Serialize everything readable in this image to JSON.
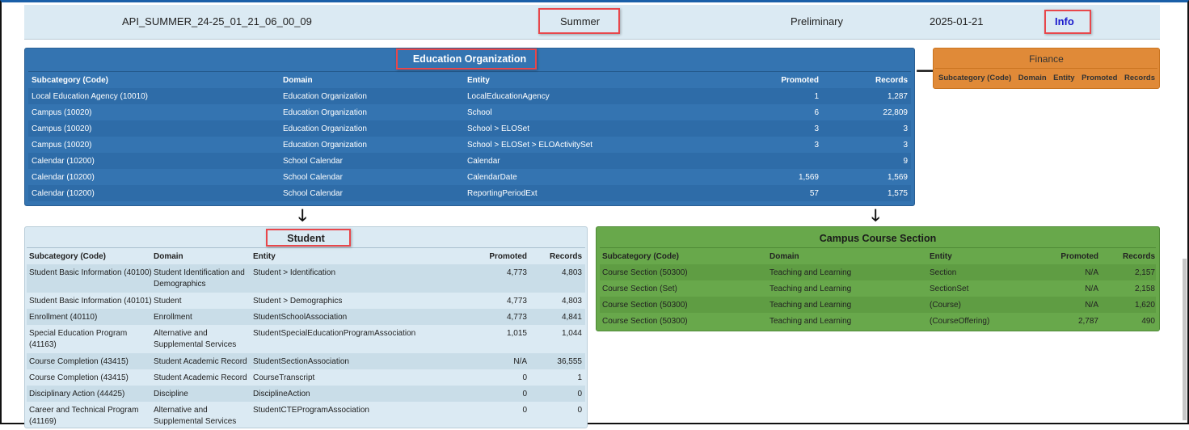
{
  "header": {
    "file": "API_SUMMER_24-25_01_21_06_00_09",
    "submission": "Summer",
    "status": "Preliminary",
    "date": "2025-01-21",
    "info": "Info"
  },
  "columns": {
    "subcategory": "Subcategory (Code)",
    "domain": "Domain",
    "entity": "Entity",
    "promoted": "Promoted",
    "records": "Records"
  },
  "education_organization": {
    "title": "Education Organization",
    "rows": [
      [
        "Local Education Agency (10010)",
        "Education Organization",
        "LocalEducationAgency",
        "1",
        "1,287"
      ],
      [
        "Campus (10020)",
        "Education Organization",
        "School",
        "6",
        "22,809"
      ],
      [
        "Campus (10020)",
        "Education Organization",
        "School > ELOSet",
        "3",
        "3"
      ],
      [
        "Campus (10020)",
        "Education Organization",
        "School > ELOSet > ELOActivitySet",
        "3",
        "3"
      ],
      [
        "Calendar (10200)",
        "School Calendar",
        "Calendar",
        "",
        "9"
      ],
      [
        "Calendar (10200)",
        "School Calendar",
        "CalendarDate",
        "1,569",
        "1,569"
      ],
      [
        "Calendar (10200)",
        "School Calendar",
        "ReportingPeriodExt",
        "57",
        "1,575"
      ]
    ]
  },
  "finance": {
    "title": "Finance",
    "rows": []
  },
  "student": {
    "title": "Student",
    "rows": [
      [
        "Student Basic Information (40100)",
        "Student Identification and Demographics",
        "Student > Identification",
        "4,773",
        "4,803"
      ],
      [
        "Student Basic Information (40101)",
        "Student",
        "Student > Demographics",
        "4,773",
        "4,803"
      ],
      [
        "Enrollment (40110)",
        "Enrollment",
        "StudentSchoolAssociation",
        "4,773",
        "4,841"
      ],
      [
        "Special Education Program (41163)",
        "Alternative and Supplemental Services",
        "StudentSpecialEducationProgramAssociation",
        "1,015",
        "1,044"
      ],
      [
        "Course Completion (43415)",
        "Student Academic Record",
        "StudentSectionAssociation",
        "N/A",
        "36,555"
      ],
      [
        "Course Completion (43415)",
        "Student Academic Record",
        "CourseTranscript",
        "0",
        "1"
      ],
      [
        "Disciplinary Action (44425)",
        "Discipline",
        "DisciplineAction",
        "0",
        "0"
      ],
      [
        "Career and Technical Program (41169)",
        "Alternative and Supplemental Services",
        "StudentCTEProgramAssociation",
        "0",
        "0"
      ]
    ]
  },
  "campus_course_section": {
    "title": "Campus Course Section",
    "rows": [
      [
        "Course Section (50300)",
        "Teaching and Learning",
        "Section",
        "N/A",
        "2,157"
      ],
      [
        "Course Section (Set)",
        "Teaching and Learning",
        "SectionSet",
        "N/A",
        "2,158"
      ],
      [
        "Course Section (50300)",
        "Teaching and Learning",
        "(Course)",
        "N/A",
        "1,620"
      ],
      [
        "Course Section (50300)",
        "Teaching and Learning",
        "(CourseOffering)",
        "2,787",
        "490"
      ]
    ]
  },
  "colors": {
    "education_organization": "#3474b1",
    "finance": "#e08a38",
    "student": "#dbeaf3",
    "campus_course_section": "#68a84b",
    "highlight": "#e8474b"
  }
}
